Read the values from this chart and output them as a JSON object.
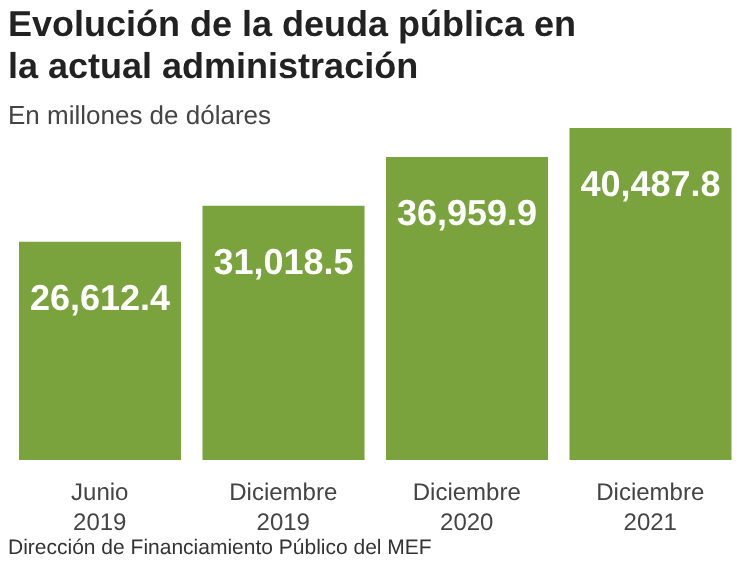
{
  "chart_data": {
    "type": "bar",
    "title": "Evolución de la deuda pública en la actual administración",
    "subtitle": "En millones de dólares",
    "categories": [
      "Junio 2019",
      "Diciembre 2019",
      "Diciembre 2020",
      "Diciembre 2021"
    ],
    "values": [
      26612.4,
      31018.5,
      36959.9,
      40487.8
    ],
    "value_labels": [
      "26,612.4",
      "31,018.5",
      "36,959.9",
      "40,487.8"
    ],
    "color": "#7aa33d",
    "annotations": [
      "Dirección de Financiamiento Público del MEF"
    ]
  }
}
